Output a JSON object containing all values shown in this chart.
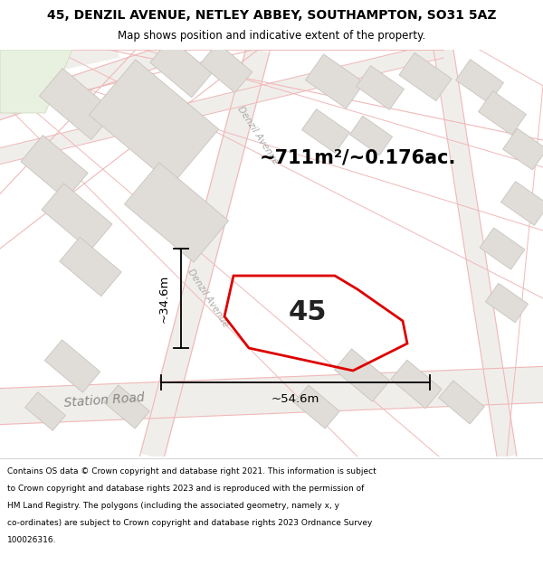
{
  "title_line1": "45, DENZIL AVENUE, NETLEY ABBEY, SOUTHAMPTON, SO31 5AZ",
  "title_line2": "Map shows position and indicative extent of the property.",
  "area_text": "~711m²/~0.176ac.",
  "property_number": "45",
  "measurement_width": "~54.6m",
  "measurement_height": "~34.6m",
  "footer_lines": [
    "Contains OS data © Crown copyright and database right 2021. This information is subject",
    "to Crown copyright and database rights 2023 and is reproduced with the permission of",
    "HM Land Registry. The polygons (including the associated geometry, namely x, y",
    "co-ordinates) are subject to Crown copyright and database rights 2023 Ordnance Survey",
    "100026316."
  ],
  "bg_color": "#ffffff",
  "map_bg_color": "#f8f7f5",
  "property_outline_color": "#dd0000",
  "building_fill": "#e0ddd8",
  "building_edge": "#c8c4be",
  "road_fill": "#f0eeeb",
  "road_line_color": "#f0b8b8",
  "street_label_station": "Station Road",
  "street_label_denzil": "Denzil Avenue",
  "street_label_denzil2": "Denzil Avenue"
}
